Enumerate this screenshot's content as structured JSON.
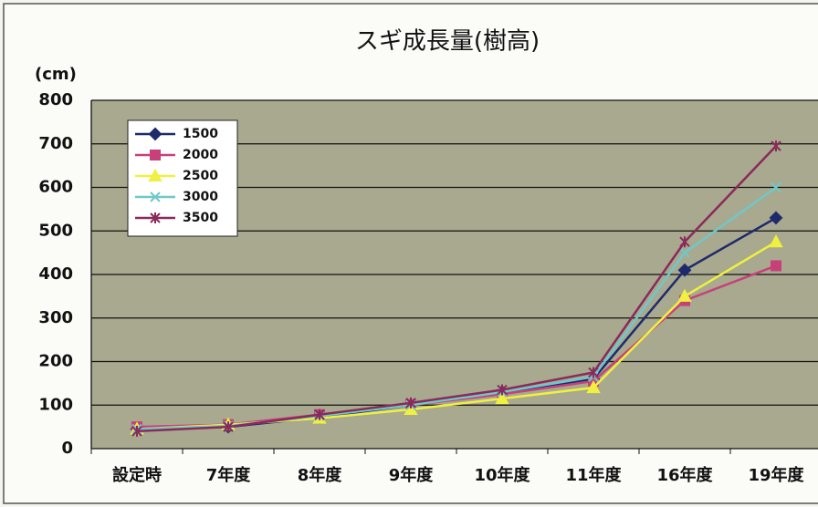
{
  "chart_data": {
    "type": "line",
    "title": "スギ成長量(樹高)",
    "ylabel": "(cm)",
    "categories": [
      "設定時",
      "7年度",
      "8年度",
      "9年度",
      "10年度",
      "11年度",
      "16年度",
      "19年度"
    ],
    "series": [
      {
        "name": "1500",
        "color": "#1f2a6b",
        "marker": "diamond",
        "values": [
          45,
          50,
          72,
          100,
          130,
          160,
          410,
          530
        ]
      },
      {
        "name": "2000",
        "color": "#c8407a",
        "marker": "square",
        "values": [
          50,
          55,
          78,
          100,
          125,
          155,
          340,
          420
        ]
      },
      {
        "name": "2500",
        "color": "#f0f040",
        "marker": "triangle",
        "values": [
          45,
          55,
          70,
          90,
          115,
          140,
          350,
          475
        ]
      },
      {
        "name": "3000",
        "color": "#70c8c8",
        "marker": "x",
        "values": [
          45,
          52,
          75,
          100,
          130,
          165,
          450,
          600
        ]
      },
      {
        "name": "3500",
        "color": "#8a2a5a",
        "marker": "star",
        "values": [
          40,
          50,
          78,
          105,
          135,
          175,
          475,
          695
        ]
      }
    ],
    "ylim": [
      0,
      800
    ],
    "yticks": [
      0,
      100,
      200,
      300,
      400,
      500,
      600,
      700,
      800
    ],
    "grid": true,
    "legend": "upper-left"
  }
}
